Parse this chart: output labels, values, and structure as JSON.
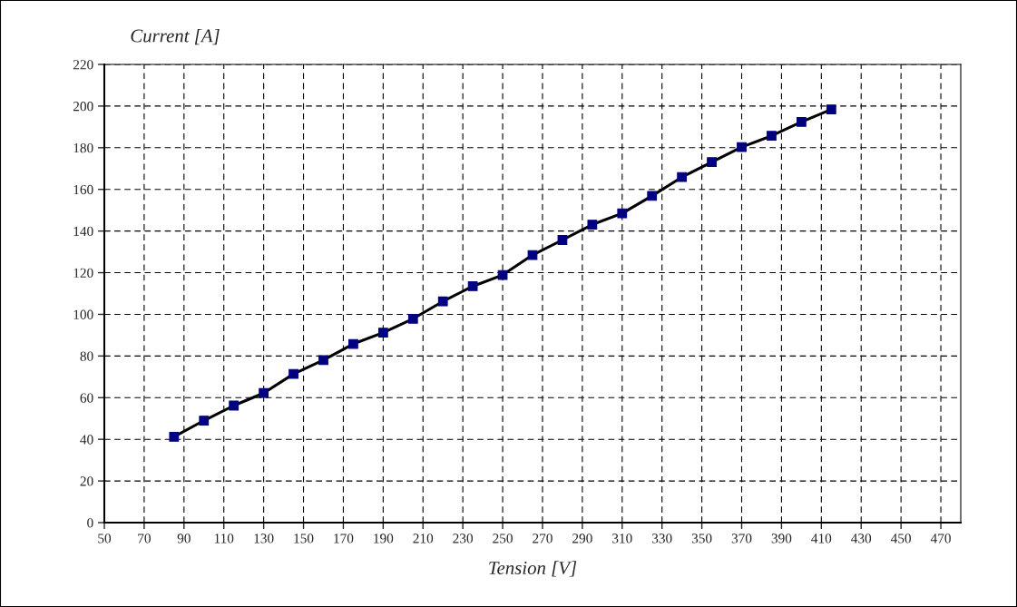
{
  "chart_data": {
    "type": "line",
    "ylabel": "Current [A]",
    "xlabel": "Tension [V]",
    "x": [
      85,
      100,
      115,
      130,
      145,
      160,
      175,
      190,
      205,
      220,
      235,
      250,
      265,
      280,
      295,
      310,
      325,
      340,
      355,
      370,
      385,
      400,
      415
    ],
    "series": [
      {
        "color": "#000080",
        "values": [
          41.2,
          49.0,
          56.2,
          62.2,
          71.4,
          78.0,
          85.8,
          91.2,
          97.9,
          106.2,
          113.5,
          118.9,
          128.5,
          135.7,
          143.1,
          148.5,
          156.9,
          165.9,
          173.1,
          180.3,
          185.7,
          192.4,
          198.4
        ]
      }
    ],
    "xlim": [
      50,
      480
    ],
    "xticks": [
      50,
      70,
      90,
      110,
      130,
      150,
      170,
      190,
      210,
      230,
      250,
      270,
      290,
      310,
      330,
      350,
      370,
      390,
      410,
      430,
      450,
      470
    ],
    "ylim": [
      0,
      220
    ],
    "yticks": [
      0,
      20,
      40,
      60,
      80,
      100,
      120,
      140,
      160,
      180,
      200,
      220
    ],
    "grid": true,
    "marker": "square",
    "line_style": "solid",
    "legend": false
  }
}
